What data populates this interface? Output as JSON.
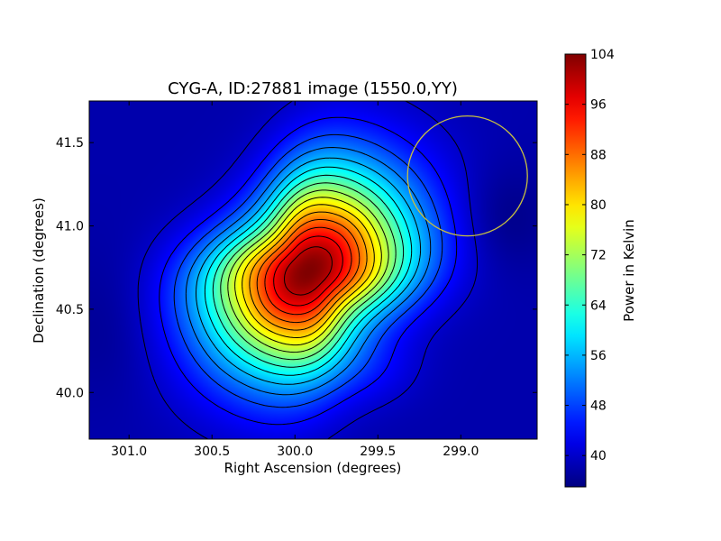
{
  "chart_data": {
    "type": "heatmap",
    "title": "CYG-A, ID:27881 image (1550.0,YY)",
    "xlabel": "Right Ascension (degrees)",
    "ylabel": "Declination (degrees)",
    "xlim": [
      301.24,
      298.54
    ],
    "ylim": [
      39.72,
      41.75
    ],
    "x_reversed": true,
    "x_ticks": [
      301.0,
      300.5,
      300.0,
      299.5,
      299.0
    ],
    "x_tick_labels": [
      "301.0",
      "300.5",
      "300.0",
      "299.5",
      "299.0"
    ],
    "y_ticks": [
      40.0,
      40.5,
      41.0,
      41.5
    ],
    "y_tick_labels": [
      "40.0",
      "40.5",
      "41.0",
      "41.5"
    ],
    "colormap": "jet",
    "colorbar": {
      "label": "Power in Kelvin",
      "min": 35,
      "max": 104,
      "ticks": [
        40,
        48,
        56,
        64,
        72,
        80,
        88,
        96,
        104
      ],
      "tick_labels": [
        "40",
        "48",
        "56",
        "64",
        "72",
        "80",
        "88",
        "96",
        "104"
      ]
    },
    "peak": {
      "ra": 299.92,
      "dec": 40.73,
      "value": 104
    },
    "background_level": 38,
    "contour_levels": [
      40,
      44,
      48,
      52,
      56,
      60,
      64,
      68,
      72,
      76,
      80,
      84,
      88,
      92,
      96,
      100
    ],
    "contour_color": "#000000",
    "marker_circle": {
      "ra": 298.96,
      "dec": 41.3,
      "radius_deg": 0.36,
      "color": "#c8c040"
    },
    "grid": false
  }
}
